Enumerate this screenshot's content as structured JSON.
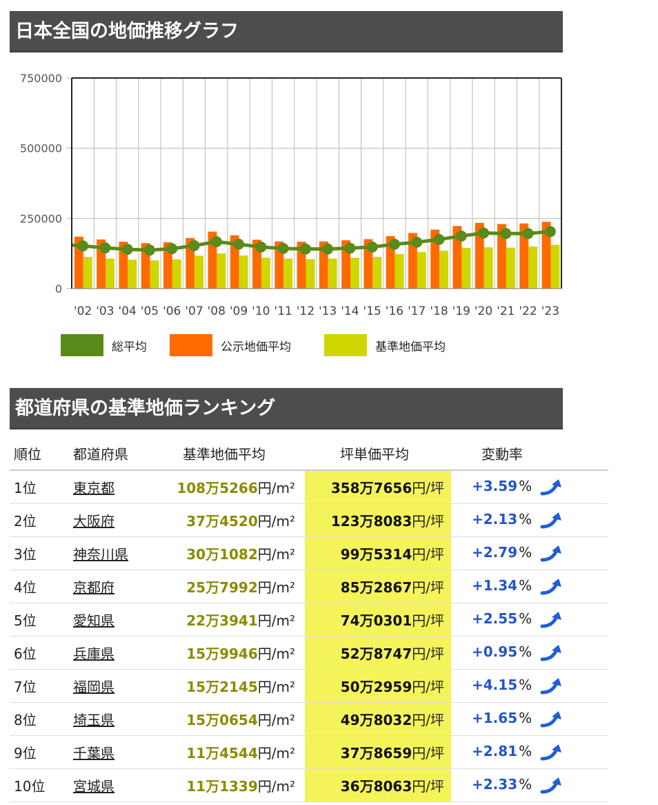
{
  "chart_section": {
    "title": "日本全国の地価推移グラフ"
  },
  "chart_data": {
    "type": "bar",
    "categories": [
      "'02",
      "'03",
      "'04",
      "'05",
      "'06",
      "'07",
      "'08",
      "'09",
      "'10",
      "'11",
      "'12",
      "'13",
      "'14",
      "'15",
      "'16",
      "'17",
      "'18",
      "'19",
      "'20",
      "'21",
      "'22",
      "'23"
    ],
    "series": [
      {
        "name": "総平均",
        "type": "line",
        "color": "#5a8a1a",
        "values": [
          152000,
          145000,
          140000,
          137000,
          142000,
          153000,
          167000,
          158000,
          148000,
          143000,
          141000,
          141000,
          144000,
          148000,
          158000,
          165000,
          175000,
          187000,
          198000,
          196000,
          196000,
          203000
        ]
      },
      {
        "name": "公示地価平均",
        "type": "bar",
        "color": "#ff6a00",
        "values": [
          185000,
          175000,
          167000,
          162000,
          165000,
          180000,
          203000,
          190000,
          174000,
          168000,
          167000,
          168000,
          172000,
          176000,
          187000,
          198000,
          210000,
          223000,
          234000,
          230000,
          232000,
          238000
        ]
      },
      {
        "name": "基準地価平均",
        "type": "bar",
        "color": "#cfd600",
        "values": [
          113000,
          107000,
          103000,
          100000,
          104000,
          117000,
          125000,
          118000,
          110000,
          107000,
          105000,
          107000,
          110000,
          113000,
          123000,
          130000,
          135000,
          145000,
          147000,
          146000,
          150000,
          156000
        ]
      }
    ],
    "yticks": [
      "750000",
      "500000",
      "250000",
      "0"
    ],
    "ylim": [
      0,
      750000
    ],
    "grid": true,
    "legend": "bottom"
  },
  "ranking_section": {
    "title": "都道府県の基準地価ランキング",
    "headers": {
      "rank": "順位",
      "pref": "都道府県",
      "std": "基準地価平均",
      "tsubo": "坪単価平均",
      "change": "変動率"
    },
    "unit_m2": "円/m²",
    "unit_tsubo": "円/坪",
    "pct": "%",
    "rows": [
      {
        "rank": "1位",
        "pref": "東京都",
        "std": "108万5266",
        "tsubo": "358万7656",
        "change": "+3.59"
      },
      {
        "rank": "2位",
        "pref": "大阪府",
        "std": "37万4520",
        "tsubo": "123万8083",
        "change": "+2.13"
      },
      {
        "rank": "3位",
        "pref": "神奈川県",
        "std": "30万1082",
        "tsubo": "99万5314",
        "change": "+2.79"
      },
      {
        "rank": "4位",
        "pref": "京都府",
        "std": "25万7992",
        "tsubo": "85万2867",
        "change": "+1.34"
      },
      {
        "rank": "5位",
        "pref": "愛知県",
        "std": "22万3941",
        "tsubo": "74万0301",
        "change": "+2.55"
      },
      {
        "rank": "6位",
        "pref": "兵庫県",
        "std": "15万9946",
        "tsubo": "52万8747",
        "change": "+0.95"
      },
      {
        "rank": "7位",
        "pref": "福岡県",
        "std": "15万2145",
        "tsubo": "50万2959",
        "change": "+4.15"
      },
      {
        "rank": "8位",
        "pref": "埼玉県",
        "std": "15万0654",
        "tsubo": "49万8032",
        "change": "+1.65"
      },
      {
        "rank": "9位",
        "pref": "千葉県",
        "std": "11万4544",
        "tsubo": "37万8659",
        "change": "+2.81"
      },
      {
        "rank": "10位",
        "pref": "宮城県",
        "std": "11万1339",
        "tsubo": "36万8063",
        "change": "+2.33"
      }
    ]
  },
  "icons": {
    "trend": "trend-up-arrow-icon"
  }
}
